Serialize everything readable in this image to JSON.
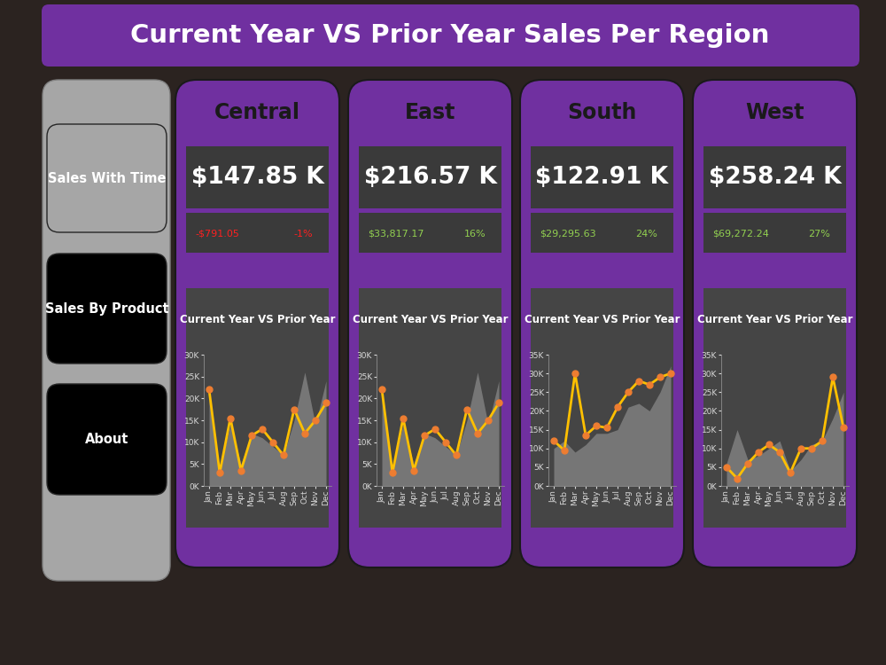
{
  "dashboard": {
    "title": "Current Year VS Prior Year Sales Per Region",
    "nav": [
      "Sales With Time",
      "Sales By Product",
      "About"
    ],
    "panels": [
      {
        "region": "Central",
        "total": "$147.85 K",
        "change": "-$791.05",
        "change_pct": "-1%"
      },
      {
        "region": "East",
        "total": "$216.57 K",
        "change": "$33,817.17",
        "change_pct": "16%"
      },
      {
        "region": "South",
        "total": "$122.91 K",
        "change": "$29,295.63",
        "change_pct": "24%"
      },
      {
        "region": "West",
        "total": "$258.24 K",
        "change": "$69,272.24",
        "change_pct": "27%"
      }
    ]
  },
  "chart_data": [
    {
      "type": "line",
      "title": "Current Year VS Prior Year",
      "categories": [
        "Jan",
        "Feb",
        "Mar",
        "Apr",
        "May",
        "Jun",
        "Jul",
        "Aug",
        "Sep",
        "Oct",
        "Nov",
        "Dec"
      ],
      "series": [
        {
          "type": "area",
          "color": "#7f7f7f",
          "values": [
            20000,
            4000,
            14000,
            5000,
            12000,
            11000,
            9000,
            7000,
            15000,
            26000,
            14000,
            24000
          ]
        },
        {
          "type": "line",
          "color": "#ffc000",
          "marker": "o",
          "values": [
            22000,
            3000,
            15500,
            3500,
            11500,
            13000,
            10000,
            7000,
            17500,
            12000,
            15000,
            19000
          ]
        }
      ],
      "ylim": [
        0,
        30000
      ],
      "yticks": [
        {
          "value": 0,
          "label": "0K"
        },
        {
          "value": 5000,
          "label": "5K"
        },
        {
          "value": 10000,
          "label": "10K"
        },
        {
          "value": 15000,
          "label": "15K"
        },
        {
          "value": 20000,
          "label": "20K"
        },
        {
          "value": 25000,
          "label": "25K"
        },
        {
          "value": 30000,
          "label": "30K"
        }
      ]
    },
    {
      "type": "line",
      "title": "Current Year VS Prior Year",
      "categories": [
        "Jan",
        "Feb",
        "Mar",
        "Apr",
        "May",
        "Jun",
        "Jul",
        "Aug",
        "Sep",
        "Oct",
        "Nov",
        "Dec"
      ],
      "series": [
        {
          "type": "area",
          "color": "#7f7f7f",
          "values": [
            20000,
            4000,
            14000,
            5000,
            12000,
            11000,
            9000,
            7000,
            15000,
            26000,
            14000,
            24000
          ]
        },
        {
          "type": "line",
          "color": "#ffc000",
          "marker": "o",
          "values": [
            22000,
            3000,
            15500,
            3500,
            11500,
            13000,
            10000,
            7000,
            17500,
            12000,
            15000,
            19000
          ]
        }
      ],
      "ylim": [
        0,
        30000
      ],
      "yticks": [
        {
          "value": 0,
          "label": "0K"
        },
        {
          "value": 5000,
          "label": "5K"
        },
        {
          "value": 10000,
          "label": "10K"
        },
        {
          "value": 15000,
          "label": "15K"
        },
        {
          "value": 20000,
          "label": "20K"
        },
        {
          "value": 25000,
          "label": "25K"
        },
        {
          "value": 30000,
          "label": "30K"
        }
      ]
    },
    {
      "type": "line",
      "title": "Current Year VS Prior Year",
      "categories": [
        "Jan",
        "Feb",
        "Mar",
        "Apr",
        "May",
        "Jun",
        "Jul",
        "Aug",
        "Sep",
        "Oct",
        "Nov",
        "Dec"
      ],
      "series": [
        {
          "type": "area",
          "color": "#7f7f7f",
          "values": [
            10000,
            12000,
            9000,
            11000,
            14000,
            14000,
            15000,
            21000,
            22000,
            20000,
            25000,
            32000
          ]
        },
        {
          "type": "line",
          "color": "#ffc000",
          "marker": "o",
          "values": [
            12000,
            9500,
            30000,
            13500,
            16000,
            15500,
            21000,
            25000,
            28000,
            27000,
            29000,
            30000
          ]
        }
      ],
      "ylim": [
        0,
        35000
      ],
      "yticks": [
        {
          "value": 0,
          "label": "0K"
        },
        {
          "value": 5000,
          "label": "5K"
        },
        {
          "value": 10000,
          "label": "10K"
        },
        {
          "value": 15000,
          "label": "15K"
        },
        {
          "value": 20000,
          "label": "20K"
        },
        {
          "value": 25000,
          "label": "25K"
        },
        {
          "value": 30000,
          "label": "30K"
        },
        {
          "value": 35000,
          "label": "35K"
        }
      ]
    },
    {
      "type": "line",
      "title": "Current Year VS Prior Year",
      "categories": [
        "Jan",
        "Feb",
        "Mar",
        "Apr",
        "May",
        "Jun",
        "Jul",
        "Aug",
        "Sep",
        "Oct",
        "Nov",
        "Dec"
      ],
      "series": [
        {
          "type": "area",
          "color": "#7f7f7f",
          "values": [
            6000,
            15000,
            7000,
            8000,
            10000,
            12000,
            4000,
            7000,
            11000,
            12000,
            18000,
            25000
          ]
        },
        {
          "type": "line",
          "color": "#ffc000",
          "marker": "o",
          "values": [
            5000,
            2000,
            6000,
            9000,
            11000,
            9000,
            3500,
            10000,
            10000,
            12000,
            29000,
            15500
          ]
        }
      ],
      "ylim": [
        0,
        35000
      ],
      "yticks": [
        {
          "value": 0,
          "label": "0K"
        },
        {
          "value": 5000,
          "label": "5K"
        },
        {
          "value": 10000,
          "label": "10K"
        },
        {
          "value": 15000,
          "label": "15K"
        },
        {
          "value": 20000,
          "label": "20K"
        },
        {
          "value": 25000,
          "label": "25K"
        },
        {
          "value": 30000,
          "label": "30K"
        },
        {
          "value": 35000,
          "label": "35K"
        }
      ]
    }
  ]
}
